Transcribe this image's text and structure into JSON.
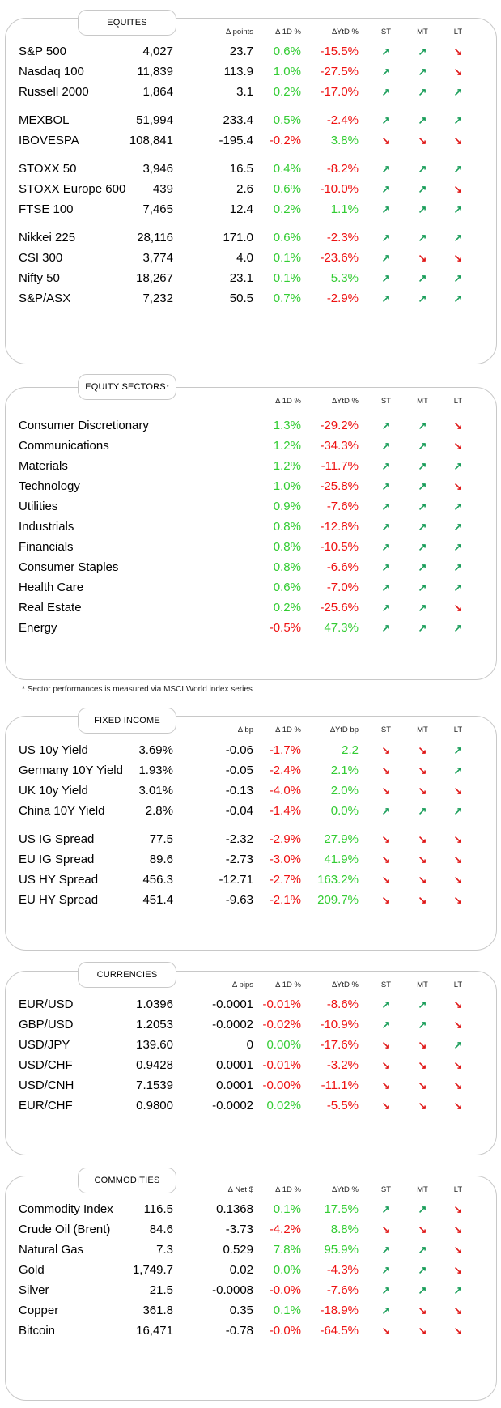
{
  "equities": {
    "title": "EQUITES",
    "headers": {
      "delta": "∆ points",
      "d1": "∆ 1D %",
      "ytd": "∆YtD %",
      "st": "ST",
      "mt": "MT",
      "lt": "LT"
    },
    "groups": [
      [
        {
          "name": "S&P 500",
          "level": "4,027",
          "delta": "23.7",
          "d1": "0.6%",
          "ytd": "-15.5%",
          "st": "up",
          "mt": "up",
          "lt": "down"
        },
        {
          "name": "Nasdaq 100",
          "level": "11,839",
          "delta": "113.9",
          "d1": "1.0%",
          "ytd": "-27.5%",
          "st": "up",
          "mt": "up",
          "lt": "down"
        },
        {
          "name": "Russell 2000",
          "level": "1,864",
          "delta": "3.1",
          "d1": "0.2%",
          "ytd": "-17.0%",
          "st": "up",
          "mt": "up",
          "lt": "up"
        }
      ],
      [
        {
          "name": "MEXBOL",
          "level": "51,994",
          "delta": "233.4",
          "d1": "0.5%",
          "ytd": "-2.4%",
          "st": "up",
          "mt": "up",
          "lt": "up"
        },
        {
          "name": "IBOVESPA",
          "level": "108,841",
          "delta": "-195.4",
          "d1": "-0.2%",
          "ytd": "3.8%",
          "st": "down",
          "mt": "down",
          "lt": "down"
        }
      ],
      [
        {
          "name": "STOXX 50",
          "level": "3,946",
          "delta": "16.5",
          "d1": "0.4%",
          "ytd": "-8.2%",
          "st": "up",
          "mt": "up",
          "lt": "up"
        },
        {
          "name": "STOXX Europe 600",
          "level": "439",
          "delta": "2.6",
          "d1": "0.6%",
          "ytd": "-10.0%",
          "st": "up",
          "mt": "up",
          "lt": "down"
        },
        {
          "name": "FTSE 100",
          "level": "7,465",
          "delta": "12.4",
          "d1": "0.2%",
          "ytd": "1.1%",
          "st": "up",
          "mt": "up",
          "lt": "up"
        }
      ],
      [
        {
          "name": "Nikkei 225",
          "level": "28,116",
          "delta": "171.0",
          "d1": "0.6%",
          "ytd": "-2.3%",
          "st": "up",
          "mt": "up",
          "lt": "up"
        },
        {
          "name": "CSI 300",
          "level": "3,774",
          "delta": "4.0",
          "d1": "0.1%",
          "ytd": "-23.6%",
          "st": "up",
          "mt": "down",
          "lt": "down"
        },
        {
          "name": "Nifty  50",
          "level": "18,267",
          "delta": "23.1",
          "d1": "0.1%",
          "ytd": "5.3%",
          "st": "up",
          "mt": "up",
          "lt": "up"
        },
        {
          "name": "S&P/ASX",
          "level": "7,232",
          "delta": "50.5",
          "d1": "0.7%",
          "ytd": "-2.9%",
          "st": "up",
          "mt": "up",
          "lt": "up"
        }
      ]
    ]
  },
  "sectors": {
    "title": "EQUITY SECTORS",
    "title_mark": "*",
    "headers": {
      "d1": "∆ 1D %",
      "ytd": "∆YtD %",
      "st": "ST",
      "mt": "MT",
      "lt": "LT"
    },
    "rows": [
      {
        "name": "Consumer Discretionary",
        "d1": "1.3%",
        "ytd": "-29.2%",
        "st": "up",
        "mt": "up",
        "lt": "down"
      },
      {
        "name": "Communications",
        "d1": "1.2%",
        "ytd": "-34.3%",
        "st": "up",
        "mt": "up",
        "lt": "down"
      },
      {
        "name": "Materials",
        "d1": "1.2%",
        "ytd": "-11.7%",
        "st": "up",
        "mt": "up",
        "lt": "up"
      },
      {
        "name": "Technology",
        "d1": "1.0%",
        "ytd": "-25.8%",
        "st": "up",
        "mt": "up",
        "lt": "down"
      },
      {
        "name": "Utilities",
        "d1": "0.9%",
        "ytd": "-7.6%",
        "st": "up",
        "mt": "up",
        "lt": "up"
      },
      {
        "name": "Industrials",
        "d1": "0.8%",
        "ytd": "-12.8%",
        "st": "up",
        "mt": "up",
        "lt": "up"
      },
      {
        "name": "Financials",
        "d1": "0.8%",
        "ytd": "-10.5%",
        "st": "up",
        "mt": "up",
        "lt": "up"
      },
      {
        "name": "Consumer Staples",
        "d1": "0.8%",
        "ytd": "-6.6%",
        "st": "up",
        "mt": "up",
        "lt": "up"
      },
      {
        "name": "Health Care",
        "d1": "0.6%",
        "ytd": "-7.0%",
        "st": "up",
        "mt": "up",
        "lt": "up"
      },
      {
        "name": "Real Estate",
        "d1": "0.2%",
        "ytd": "-25.6%",
        "st": "up",
        "mt": "up",
        "lt": "down"
      },
      {
        "name": "Energy",
        "d1": "-0.5%",
        "ytd": "47.3%",
        "st": "up",
        "mt": "up",
        "lt": "up"
      }
    ],
    "footnote": "* Sector performances is measured via MSCI World index series"
  },
  "fixed_income": {
    "title": "FIXED INCOME",
    "headers": {
      "delta": "∆ bp",
      "d1": "∆ 1D %",
      "ytd": "∆YtD bp",
      "st": "ST",
      "mt": "MT",
      "lt": "LT"
    },
    "groups": [
      [
        {
          "name": "US 10y Yield",
          "level": "3.69%",
          "delta": "-0.06",
          "d1": "-1.7%",
          "ytd": "2.2",
          "st": "down",
          "mt": "down",
          "lt": "up"
        },
        {
          "name": "Germany 10Y Yield",
          "level": "1.93%",
          "delta": "-0.05",
          "d1": "-2.4%",
          "ytd": "2.1%",
          "st": "down",
          "mt": "down",
          "lt": "up"
        },
        {
          "name": "UK 10y Yield",
          "level": "3.01%",
          "delta": "-0.13",
          "d1": "-4.0%",
          "ytd": "2.0%",
          "st": "down",
          "mt": "down",
          "lt": "down"
        },
        {
          "name": "China 10Y Yield",
          "level": "2.8%",
          "delta": "-0.04",
          "d1": "-1.4%",
          "ytd": "0.0%",
          "st": "up",
          "mt": "up",
          "lt": "up"
        }
      ],
      [
        {
          "name": "US IG Spread",
          "level": "77.5",
          "delta": "-2.32",
          "d1": "-2.9%",
          "ytd": "27.9%",
          "st": "down",
          "mt": "down",
          "lt": "down"
        },
        {
          "name": "EU IG Spread",
          "level": "89.6",
          "delta": "-2.73",
          "d1": "-3.0%",
          "ytd": "41.9%",
          "st": "down",
          "mt": "down",
          "lt": "down"
        },
        {
          "name": "US HY Spread",
          "level": "456.3",
          "delta": "-12.71",
          "d1": "-2.7%",
          "ytd": "163.2%",
          "st": "down",
          "mt": "down",
          "lt": "down"
        },
        {
          "name": "EU HY Spread",
          "level": "451.4",
          "delta": "-9.63",
          "d1": "-2.1%",
          "ytd": "209.7%",
          "st": "down",
          "mt": "down",
          "lt": "down"
        }
      ]
    ]
  },
  "currencies": {
    "title": "CURRENCIES",
    "headers": {
      "delta": "∆ pips",
      "d1": "∆ 1D %",
      "ytd": "∆YtD %",
      "st": "ST",
      "mt": "MT",
      "lt": "LT"
    },
    "rows": [
      {
        "name": "EUR/USD",
        "level": "1.0396",
        "delta": "-0.0001",
        "d1": "-0.01%",
        "ytd": "-8.6%",
        "st": "up",
        "mt": "up",
        "lt": "down"
      },
      {
        "name": "GBP/USD",
        "level": "1.2053",
        "delta": "-0.0002",
        "d1": "-0.02%",
        "ytd": "-10.9%",
        "st": "up",
        "mt": "up",
        "lt": "down"
      },
      {
        "name": "USD/JPY",
        "level": "139.60",
        "delta": "0",
        "d1": "0.00%",
        "ytd": "-17.6%",
        "st": "down",
        "mt": "down",
        "lt": "up"
      },
      {
        "name": "USD/CHF",
        "level": "0.9428",
        "delta": "0.0001",
        "d1": "-0.01%",
        "ytd": "-3.2%",
        "st": "down",
        "mt": "down",
        "lt": "down"
      },
      {
        "name": "USD/CNH",
        "level": "7.1539",
        "delta": "0.0001",
        "d1": "-0.00%",
        "ytd": "-11.1%",
        "st": "down",
        "mt": "down",
        "lt": "down"
      },
      {
        "name": "EUR/CHF",
        "level": "0.9800",
        "delta": "-0.0002",
        "d1": "0.02%",
        "ytd": "-5.5%",
        "st": "down",
        "mt": "down",
        "lt": "down"
      }
    ]
  },
  "commodities": {
    "title": "COMMODITIES",
    "headers": {
      "delta": "∆ Net $",
      "d1": "∆ 1D %",
      "ytd": "∆YtD %",
      "st": "ST",
      "mt": "MT",
      "lt": "LT"
    },
    "rows": [
      {
        "name": "Commodity Index",
        "level": "116.5",
        "delta": "0.1368",
        "d1": "0.1%",
        "ytd": "17.5%",
        "st": "up",
        "mt": "up",
        "lt": "down"
      },
      {
        "name": "Crude Oil (Brent)",
        "level": "84.6",
        "delta": "-3.73",
        "d1": "-4.2%",
        "ytd": "8.8%",
        "st": "down",
        "mt": "down",
        "lt": "down"
      },
      {
        "name": "Natural Gas",
        "level": "7.3",
        "delta": "0.529",
        "d1": "7.8%",
        "ytd": "95.9%",
        "st": "up",
        "mt": "up",
        "lt": "down"
      },
      {
        "name": "Gold",
        "level": "1,749.7",
        "delta": "0.02",
        "d1": "0.0%",
        "ytd": "-4.3%",
        "st": "up",
        "mt": "up",
        "lt": "down"
      },
      {
        "name": "Silver",
        "level": "21.5",
        "delta": "-0.0008",
        "d1": "-0.0%",
        "ytd": "-7.6%",
        "st": "up",
        "mt": "up",
        "lt": "up"
      },
      {
        "name": "Copper",
        "level": "361.8",
        "delta": "0.35",
        "d1": "0.1%",
        "ytd": "-18.9%",
        "st": "up",
        "mt": "down",
        "lt": "down"
      },
      {
        "name": "Bitcoin",
        "level": "16,471",
        "delta": "-0.78",
        "d1": "-0.0%",
        "ytd": "-64.5%",
        "st": "down",
        "mt": "down",
        "lt": "down"
      }
    ]
  },
  "colors": {
    "positive": "#33cc33",
    "negative": "#ee1111",
    "trend_up": "#1a9e5a",
    "trend_down": "#e01818",
    "border": "#c8c8c8"
  }
}
